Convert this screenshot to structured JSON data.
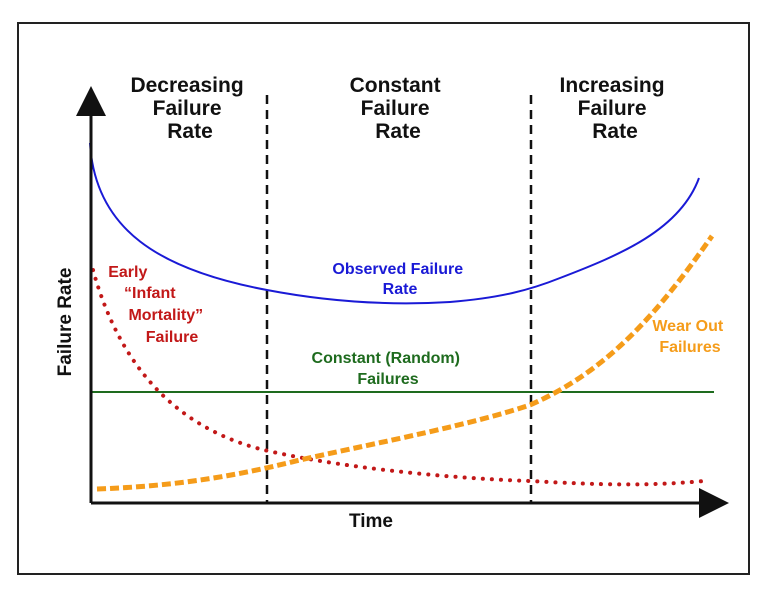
{
  "regions": [
    {
      "lines": [
        "Decreasing",
        "Failure",
        "Rate"
      ]
    },
    {
      "lines": [
        "Constant",
        "Failure",
        "Rate"
      ]
    },
    {
      "lines": [
        "Increasing",
        "Failure",
        "Rate"
      ]
    }
  ],
  "axes": {
    "x_label": "Time",
    "y_label": "Failure Rate"
  },
  "curves": {
    "observed": {
      "lines": [
        "Observed Failure",
        "Rate"
      ],
      "color": "#1a1ad6"
    },
    "infant": {
      "lines": [
        "Early",
        "“Infant",
        "Mortality”",
        "Failure"
      ],
      "color": "#c21818"
    },
    "constant": {
      "lines": [
        "Constant (Random)",
        "Failures"
      ],
      "color": "#1e6b1e"
    },
    "wearout": {
      "lines": [
        "Wear Out",
        "Failures"
      ],
      "color": "#f59c1a"
    }
  }
}
